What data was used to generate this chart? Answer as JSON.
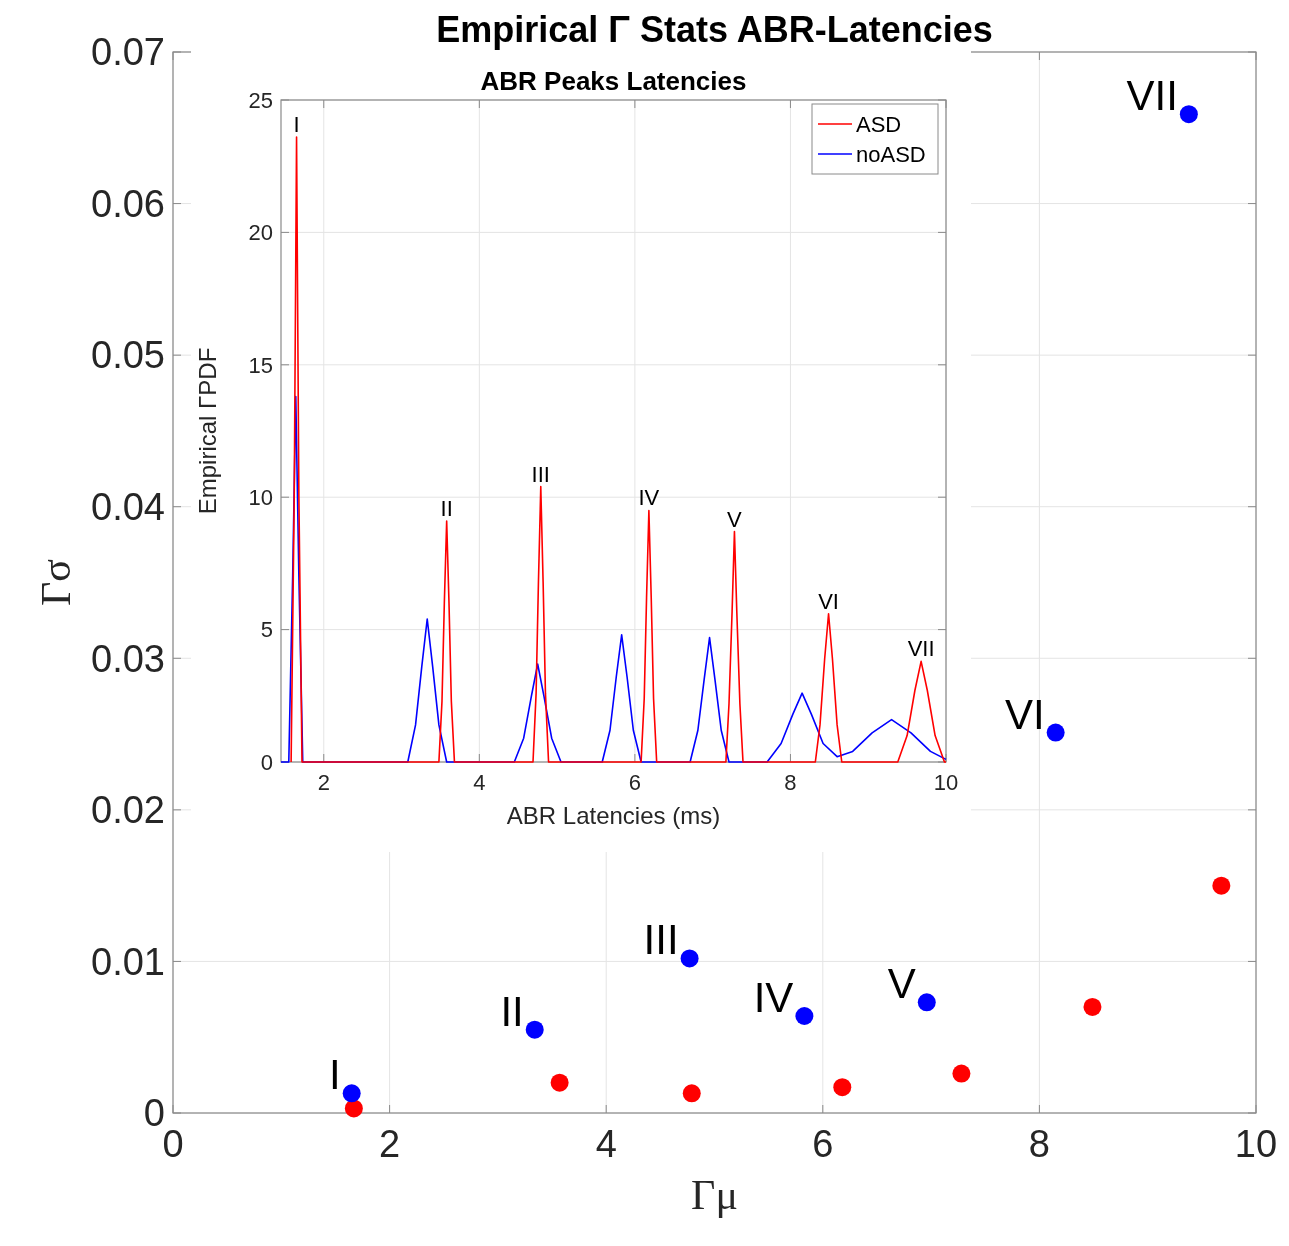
{
  "chart_data": [
    {
      "type": "scatter",
      "title": "Empirical Γ Stats ABR-Latencies",
      "xlabel": "Γμ",
      "ylabel": "Γσ",
      "xlim": [
        0,
        10
      ],
      "ylim": [
        0,
        0.07
      ],
      "xticks": [
        0,
        2,
        4,
        6,
        8,
        10
      ],
      "yticks": [
        0,
        0.01,
        0.02,
        0.03,
        0.04,
        0.05,
        0.06,
        0.07
      ],
      "grid": true,
      "marker": "circle",
      "series": [
        {
          "color": "#0000ff",
          "x": [
            1.65,
            3.34,
            4.77,
            5.83,
            6.96,
            8.15,
            9.38
          ],
          "values": [
            0.0013,
            0.0055,
            0.0102,
            0.0064,
            0.0073,
            0.0251,
            0.0659
          ]
        },
        {
          "color": "#ff0000",
          "x": [
            1.67,
            3.57,
            4.79,
            6.18,
            7.28,
            8.49,
            9.68
          ],
          "values": [
            0.0003,
            0.002,
            0.0013,
            0.0017,
            0.0026,
            0.007,
            0.015
          ]
        }
      ],
      "annotations": [
        {
          "text": "I",
          "x": 1.65,
          "y": 0.0013
        },
        {
          "text": "II",
          "x": 3.34,
          "y": 0.0055
        },
        {
          "text": "III",
          "x": 4.77,
          "y": 0.0102
        },
        {
          "text": "IV",
          "x": 5.83,
          "y": 0.0064
        },
        {
          "text": "V",
          "x": 6.96,
          "y": 0.0073
        },
        {
          "text": "VI",
          "x": 8.15,
          "y": 0.0251
        },
        {
          "text": "VII",
          "x": 9.38,
          "y": 0.0659
        }
      ]
    },
    {
      "type": "line",
      "title": "ABR Peaks Latencies",
      "xlabel": "ABR Latencies (ms)",
      "ylabel": "Empirical ΓPDF",
      "xlim": [
        1.45,
        10
      ],
      "ylim": [
        0,
        25
      ],
      "xticks": [
        2,
        4,
        6,
        8,
        10
      ],
      "yticks": [
        0,
        5,
        10,
        15,
        20,
        25
      ],
      "grid": true,
      "legend": "top right",
      "line_style": "solid",
      "series": [
        {
          "name": "ASD",
          "color": "#ff0000",
          "x": [
            1.58,
            1.62,
            1.65,
            1.68,
            1.72,
            3.48,
            3.52,
            3.55,
            3.58,
            3.61,
            3.64,
            3.68,
            4.69,
            4.73,
            4.76,
            4.79,
            4.82,
            4.85,
            4.89,
            6.08,
            6.12,
            6.15,
            6.18,
            6.21,
            6.24,
            6.28,
            7.17,
            7.21,
            7.25,
            7.28,
            7.31,
            7.35,
            7.39,
            8.32,
            8.38,
            8.44,
            8.49,
            8.54,
            8.6,
            8.66,
            9.38,
            9.5,
            9.6,
            9.68,
            9.76,
            9.86,
            9.98,
            10
          ],
          "values": [
            0,
            10,
            23.6,
            10,
            0,
            0,
            2.3,
            6,
            9.1,
            6,
            2.3,
            0,
            0,
            2.6,
            6.8,
            10.4,
            6.8,
            2.6,
            0,
            0,
            2.4,
            6.2,
            9.5,
            6.2,
            2.4,
            0,
            0,
            2.2,
            5.7,
            8.7,
            5.7,
            2.2,
            0,
            0,
            1.4,
            3.9,
            5.6,
            3.9,
            1.4,
            0,
            0,
            1,
            2.7,
            3.8,
            2.7,
            1,
            0,
            0
          ]
        },
        {
          "name": "noASD",
          "color": "#0000ff",
          "x": [
            1.45,
            1.55,
            1.6,
            1.64,
            1.68,
            1.73,
            3.08,
            3.18,
            3.26,
            3.33,
            3.4,
            3.48,
            3.58,
            4.45,
            4.57,
            4.67,
            4.75,
            4.83,
            4.93,
            5.05,
            5.58,
            5.68,
            5.76,
            5.83,
            5.9,
            5.98,
            6.08,
            6.71,
            6.81,
            6.89,
            6.96,
            7.03,
            7.11,
            7.21,
            7.7,
            7.88,
            8.03,
            8.15,
            8.27,
            8.42,
            8.6,
            8.8,
            9.05,
            9.3,
            9.55,
            9.8,
            10
          ],
          "values": [
            0,
            0,
            7,
            13.8,
            7,
            0,
            0,
            1.4,
            3.6,
            5.4,
            3.6,
            1.4,
            0,
            0,
            0.9,
            2.5,
            3.7,
            2.5,
            0.9,
            0,
            0,
            1.2,
            3.2,
            4.8,
            3.2,
            1.2,
            0,
            0,
            1.2,
            3.1,
            4.7,
            3.1,
            1.2,
            0,
            0,
            0.7,
            1.8,
            2.6,
            1.8,
            0.7,
            0.2,
            0.4,
            1.1,
            1.6,
            1.1,
            0.4,
            0.1
          ]
        }
      ],
      "annotations": [
        {
          "text": "I",
          "x": 1.65,
          "y": 23.6
        },
        {
          "text": "II",
          "x": 3.58,
          "y": 9.1
        },
        {
          "text": "III",
          "x": 4.79,
          "y": 10.4
        },
        {
          "text": "IV",
          "x": 6.18,
          "y": 9.5
        },
        {
          "text": "V",
          "x": 7.28,
          "y": 8.7
        },
        {
          "text": "VI",
          "x": 8.49,
          "y": 5.6
        },
        {
          "text": "VII",
          "x": 9.68,
          "y": 3.8
        }
      ]
    }
  ]
}
